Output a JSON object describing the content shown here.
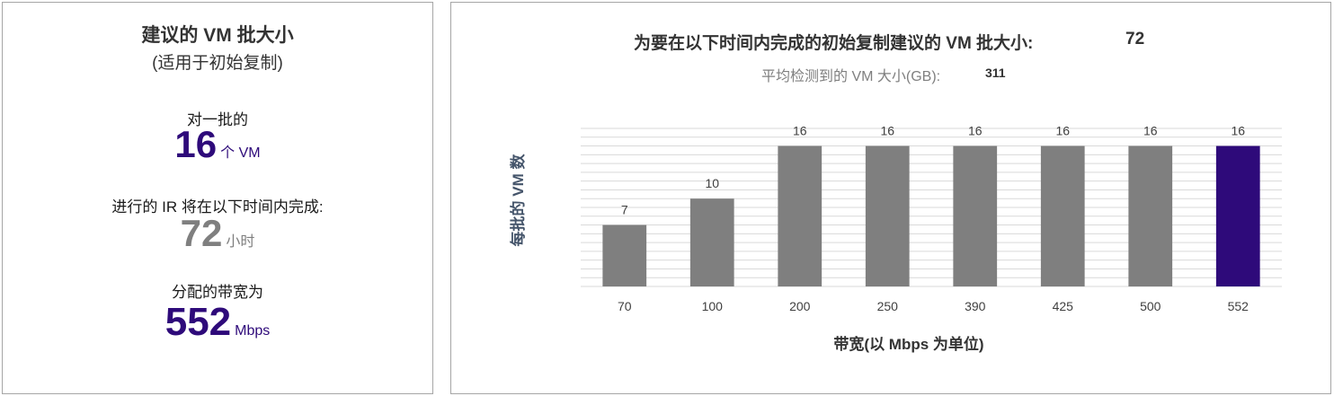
{
  "left_panel": {
    "title": "建议的 VM 批大小",
    "subtitle": "(适用于初始复制)",
    "batch_label": "对一批的",
    "batch_value": "16",
    "batch_unit": "个 VM",
    "duration_label": "进行的 IR 将在以下时间内完成:",
    "duration_value": "72",
    "duration_unit": "小时",
    "bandwidth_label": "分配的带宽为",
    "bandwidth_value": "552",
    "bandwidth_unit": "Mbps"
  },
  "right_panel": {
    "title_label": "为要在以下时间内完成的初始复制建议的 VM 批大小:",
    "title_value": "72",
    "subtitle_label": "平均检测到的 VM 大小(GB):",
    "subtitle_value": "311"
  },
  "colors": {
    "accent_purple": "#2e0a7a",
    "bar_gray": "#7f7f7f",
    "grid": "#d9d9d9"
  },
  "chart_data": {
    "type": "bar",
    "xlabel": "带宽(以 Mbps 为单位)",
    "ylabel": "每批的 VM 数",
    "categories": [
      "70",
      "100",
      "200",
      "250",
      "390",
      "425",
      "500",
      "552"
    ],
    "values": [
      7,
      10,
      16,
      16,
      16,
      16,
      16,
      16
    ],
    "highlight_index": 7,
    "ylim": [
      0,
      18
    ],
    "grid": true,
    "legend": "none"
  }
}
